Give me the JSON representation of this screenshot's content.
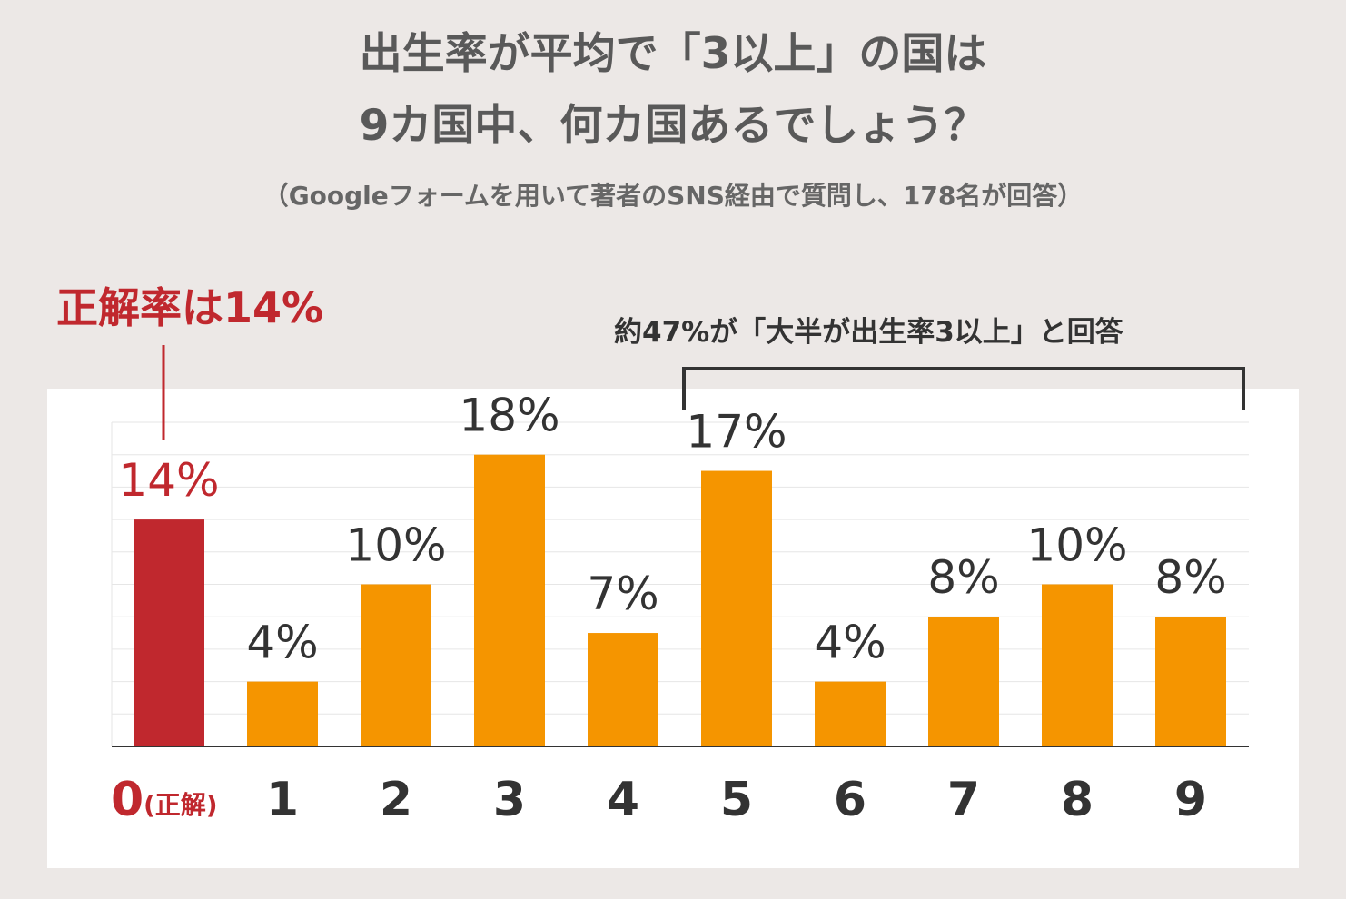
{
  "title_line1": "出生率が平均で「3以上」の国は",
  "title_line2": "9カ国中、何カ国あるでしょう？",
  "subtitle": "（Googleフォームを用いて著者のSNS経由で質問し、178名が回答）",
  "callouts": {
    "correct": "正解率は14%",
    "majority": "約47%が「大半が出生率3以上」と回答"
  },
  "colors": {
    "correct_bar": "#c0282e",
    "other_bar": "#f59500",
    "bracket": "#333333",
    "gridline": "#e6e6e6",
    "axis": "#333333"
  },
  "chart_data": {
    "type": "bar",
    "categories": [
      "0",
      "1",
      "2",
      "3",
      "4",
      "5",
      "6",
      "7",
      "8",
      "9"
    ],
    "category_suffix": [
      "(正解)",
      "",
      "",
      "",
      "",
      "",
      "",
      "",
      "",
      ""
    ],
    "values": [
      14,
      4,
      10,
      18,
      7,
      17,
      4,
      8,
      10,
      8
    ],
    "data_labels": [
      "14%",
      "4%",
      "10%",
      "18%",
      "7%",
      "17%",
      "4%",
      "8%",
      "10%",
      "8%"
    ],
    "highlight_index": 0,
    "bracket_categories": [
      "5",
      "9"
    ],
    "ylim": [
      0,
      20
    ],
    "grid": true,
    "title": "",
    "xlabel": "",
    "ylabel": ""
  }
}
